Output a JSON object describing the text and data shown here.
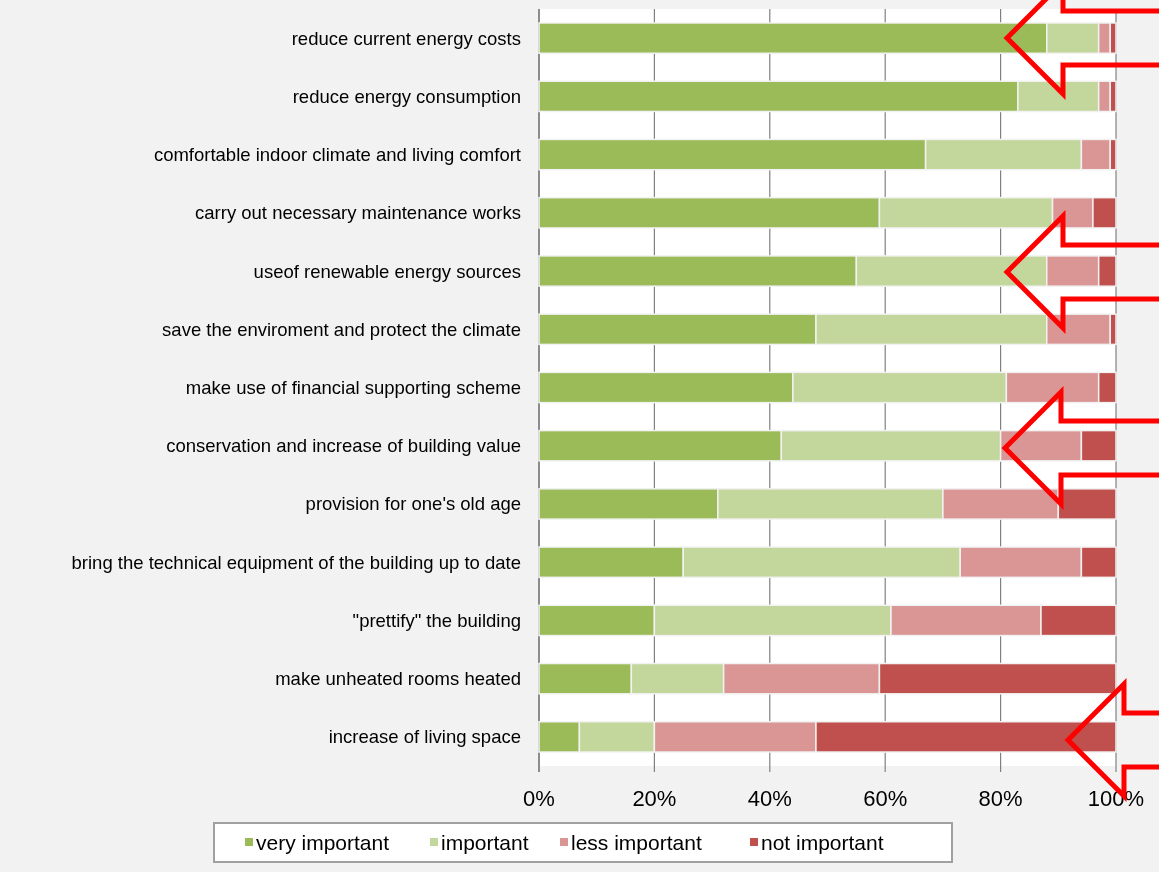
{
  "chart_data": {
    "type": "bar",
    "orientation": "horizontal",
    "stacked": true,
    "categories": [
      "reduce current energy costs",
      "reduce energy consumption",
      "comfortable indoor climate and living comfort",
      "carry out necessary maintenance works",
      "useof renewable energy sources",
      "save the enviroment and protect the climate",
      "make use of financial supporting scheme",
      "conservation and increase of building value",
      "provision for one's old age",
      "bring the technical equipment of the building up to date",
      "\"prettify\" the building",
      "make unheated rooms heated",
      "increase of living space"
    ],
    "series": [
      {
        "name": "very important",
        "color": "#9bbb59",
        "values": [
          88,
          83,
          67,
          59,
          55,
          48,
          44,
          42,
          31,
          25,
          20,
          16,
          7
        ]
      },
      {
        "name": "important",
        "color": "#c3d69b",
        "values": [
          9,
          14,
          27,
          30,
          33,
          40,
          37,
          38,
          39,
          48,
          41,
          16,
          13
        ]
      },
      {
        "name": "less important",
        "color": "#d99694",
        "values": [
          2,
          2,
          5,
          7,
          9,
          11,
          16,
          14,
          20,
          21,
          26,
          27,
          28
        ]
      },
      {
        "name": "not important",
        "color": "#c0504d",
        "values": [
          1,
          1,
          1,
          4,
          3,
          1,
          3,
          6,
          10,
          6,
          13,
          41,
          52
        ]
      }
    ],
    "xlim": [
      0,
      100
    ],
    "xticks": [
      {
        "value": 0,
        "label": "0%"
      },
      {
        "value": 20,
        "label": "20%"
      },
      {
        "value": 40,
        "label": "40%"
      },
      {
        "value": 60,
        "label": "60%"
      },
      {
        "value": 80,
        "label": "80%"
      },
      {
        "value": 100,
        "label": "100%"
      }
    ],
    "grid": "x",
    "legend": "bottom"
  }
}
